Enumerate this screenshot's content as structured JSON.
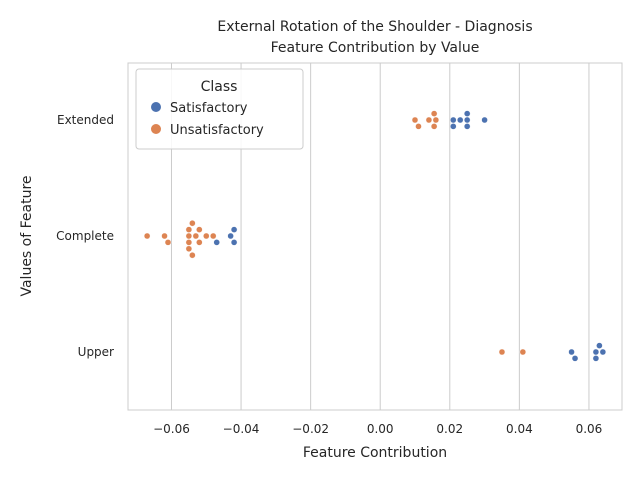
{
  "chart_data": {
    "type": "scatter",
    "title_line1": "External Rotation of the Shoulder - Diagnosis",
    "title_line2": "Feature Contribution by Value",
    "xlabel": "Feature Contribution",
    "ylabel": "Values of Feature",
    "xlim": [
      -0.0725,
      0.0695
    ],
    "xticks": [
      -0.06,
      -0.04,
      -0.02,
      0.0,
      0.02,
      0.04,
      0.06
    ],
    "xtick_labels": [
      "−0.06",
      "−0.04",
      "−0.02",
      "0.00",
      "0.02",
      "0.04",
      "0.06"
    ],
    "categories": [
      "Extended",
      "Complete",
      "Upper"
    ],
    "grid": "vertical",
    "legend": {
      "title": "Class",
      "placement": "top-left"
    },
    "series": [
      {
        "name": "Satisfactory",
        "color": "#4c72b0",
        "points": [
          {
            "category": "Extended",
            "x": 0.021
          },
          {
            "category": "Extended",
            "x": 0.025
          },
          {
            "category": "Extended",
            "x": 0.021
          },
          {
            "category": "Extended",
            "x": 0.023
          },
          {
            "category": "Extended",
            "x": 0.025
          },
          {
            "category": "Extended",
            "x": 0.03
          },
          {
            "category": "Extended",
            "x": 0.025
          },
          {
            "category": "Complete",
            "x": -0.042
          },
          {
            "category": "Complete",
            "x": -0.043
          },
          {
            "category": "Complete",
            "x": -0.047
          },
          {
            "category": "Complete",
            "x": -0.042
          },
          {
            "category": "Upper",
            "x": 0.056
          },
          {
            "category": "Upper",
            "x": 0.062
          },
          {
            "category": "Upper",
            "x": 0.055
          },
          {
            "category": "Upper",
            "x": 0.062
          },
          {
            "category": "Upper",
            "x": 0.064
          },
          {
            "category": "Upper",
            "x": 0.063
          }
        ]
      },
      {
        "name": "Unsatisfactory",
        "color": "#dd8452",
        "points": [
          {
            "category": "Extended",
            "x": 0.011
          },
          {
            "category": "Extended",
            "x": 0.0155
          },
          {
            "category": "Extended",
            "x": 0.01
          },
          {
            "category": "Extended",
            "x": 0.014
          },
          {
            "category": "Extended",
            "x": 0.0155
          },
          {
            "category": "Extended",
            "x": 0.016
          },
          {
            "category": "Complete",
            "x": -0.055
          },
          {
            "category": "Complete",
            "x": -0.061
          },
          {
            "category": "Complete",
            "x": -0.055
          },
          {
            "category": "Complete",
            "x": -0.052
          },
          {
            "category": "Complete",
            "x": -0.054
          },
          {
            "category": "Complete",
            "x": -0.067
          },
          {
            "category": "Complete",
            "x": -0.062
          },
          {
            "category": "Complete",
            "x": -0.055
          },
          {
            "category": "Complete",
            "x": -0.05
          },
          {
            "category": "Complete",
            "x": -0.048
          },
          {
            "category": "Complete",
            "x": -0.053
          },
          {
            "category": "Complete",
            "x": -0.055
          },
          {
            "category": "Complete",
            "x": -0.052
          },
          {
            "category": "Complete",
            "x": -0.054
          },
          {
            "category": "Upper",
            "x": 0.035
          },
          {
            "category": "Upper",
            "x": 0.041
          }
        ]
      }
    ]
  }
}
